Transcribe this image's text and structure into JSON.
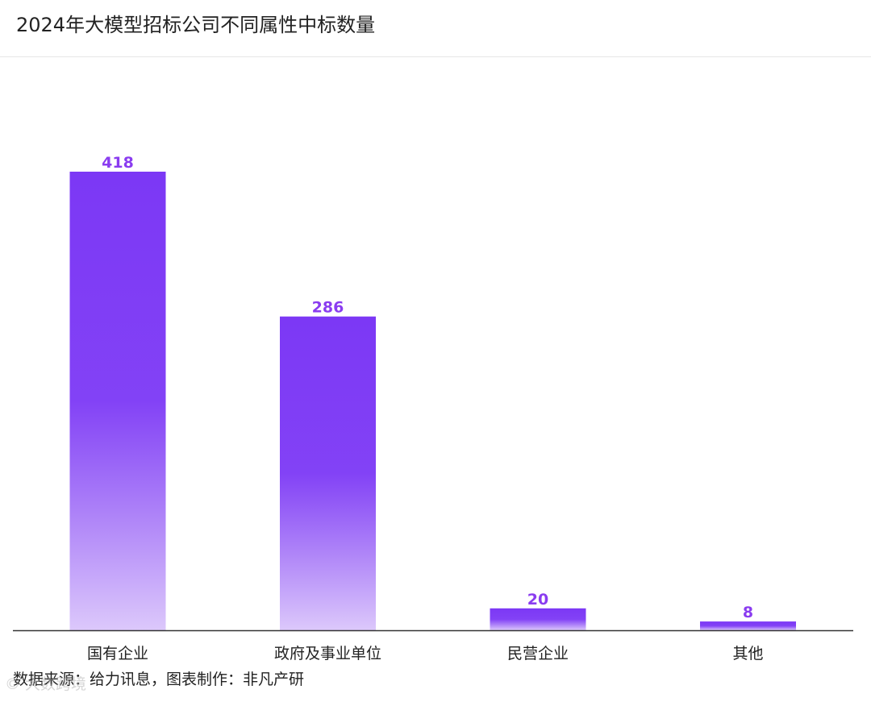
{
  "header": {
    "title": "2024年大模型招标公司不同属性中标数量"
  },
  "footer": {
    "source": "数据来源：给力讯息，图表制作：非凡产研",
    "watermark": "© 大数跨境"
  },
  "colors": {
    "bar_top": "#7c38f5",
    "bar_bottom": "#dcc8fb",
    "value_label": "#8a3cf0",
    "axis": "#333333"
  },
  "chart_data": {
    "type": "bar",
    "title": "2024年大模型招标公司不同属性中标数量",
    "xlabel": "",
    "ylabel": "",
    "categories": [
      "国有企业",
      "政府及事业单位",
      "民营企业",
      "其他"
    ],
    "values": [
      418,
      286,
      20,
      8
    ],
    "value_labels": [
      "418",
      "286",
      "20",
      "8"
    ],
    "ylim": [
      0,
      418
    ],
    "grid": false,
    "legend": "none"
  }
}
